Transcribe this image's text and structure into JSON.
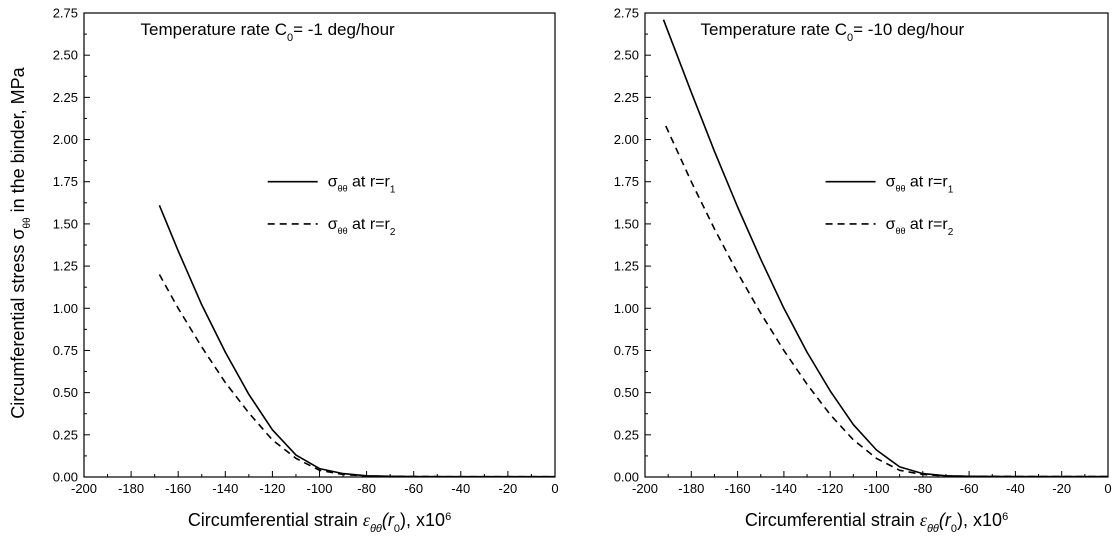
{
  "ylabel_shared": "Circumferential stress σθθ in the binder, MPa",
  "ylabel_parts": {
    "prefix": "Circumferential stress ",
    "symbol": "σ",
    "sub": "θθ",
    "suffix": " in the binder, MPa"
  },
  "chart_data": [
    {
      "type": "line",
      "title": "Temperature rate C0= -1 deg/hour",
      "title_parts": {
        "prefix": "Temperature rate C",
        "sub": "0",
        "suffix": "= -1 deg/hour"
      },
      "xlabel": "Circumferential strain εθθ(r0), x10^6",
      "xlabel_parts": {
        "prefix": "Circumferential strain ",
        "eps": "ε",
        "eps_sub": "θθ",
        "arg_open": "(r",
        "arg_sub": "0",
        "arg_close": "), x10",
        "exp": "6"
      },
      "xlim": [
        -200,
        0
      ],
      "ylim": [
        0,
        2.75
      ],
      "xticks": [
        -200,
        -180,
        -160,
        -140,
        -120,
        -100,
        -80,
        -60,
        -40,
        -20,
        0
      ],
      "yticks": [
        0,
        0.25,
        0.5,
        0.75,
        1.0,
        1.25,
        1.5,
        1.75,
        2.0,
        2.25,
        2.5,
        2.75
      ],
      "ytick_labels": [
        "0.00",
        "0.25",
        "0.50",
        "0.75",
        "1.00",
        "1.25",
        "1.50",
        "1.75",
        "2.00",
        "2.25",
        "2.50",
        "2.75"
      ],
      "grid": false,
      "legend": "center-right",
      "series": [
        {
          "name": "σθθ at r=r1",
          "name_parts": {
            "symbol": "σ",
            "sub": "θθ",
            "text": "  at r=r",
            "r_sub": "1"
          },
          "style": "solid",
          "x": [
            -168,
            -160,
            -150,
            -140,
            -130,
            -120,
            -110,
            -100,
            -90,
            -80,
            -70,
            -60,
            -40,
            -20,
            0
          ],
          "y": [
            1.61,
            1.34,
            1.02,
            0.74,
            0.49,
            0.28,
            0.13,
            0.05,
            0.02,
            0.007,
            0.004,
            0.003,
            0.002,
            0.002,
            0.002
          ]
        },
        {
          "name": "σθθ at r=r2",
          "name_parts": {
            "symbol": "σ",
            "sub": "θθ",
            "text": "  at r=r",
            "r_sub": "2"
          },
          "style": "dashed",
          "x": [
            -168,
            -160,
            -150,
            -140,
            -130,
            -120,
            -110,
            -100,
            -90,
            -80,
            -70,
            -60,
            -40,
            -20,
            0
          ],
          "y": [
            1.2,
            1.0,
            0.77,
            0.56,
            0.38,
            0.22,
            0.11,
            0.04,
            0.015,
            0.006,
            0.004,
            0.003,
            0.002,
            0.002,
            0.002
          ]
        }
      ]
    },
    {
      "type": "line",
      "title": "Temperature rate C0= -10 deg/hour",
      "title_parts": {
        "prefix": "Temperature rate C",
        "sub": "0",
        "suffix": "= -10 deg/hour"
      },
      "xlabel": "Circumferential strain εθθ(r0), x10^6",
      "xlabel_parts": {
        "prefix": "Circumferential strain ",
        "eps": "ε",
        "eps_sub": "θθ",
        "arg_open": "(r",
        "arg_sub": "0",
        "arg_close": "), x10",
        "exp": "6"
      },
      "xlim": [
        -200,
        0
      ],
      "ylim": [
        0,
        2.75
      ],
      "xticks": [
        -200,
        -180,
        -160,
        -140,
        -120,
        -100,
        -80,
        -60,
        -40,
        -20,
        0
      ],
      "yticks": [
        0,
        0.25,
        0.5,
        0.75,
        1.0,
        1.25,
        1.5,
        1.75,
        2.0,
        2.25,
        2.5,
        2.75
      ],
      "ytick_labels": [
        "0.00",
        "0.25",
        "0.50",
        "0.75",
        "1.00",
        "1.25",
        "1.50",
        "1.75",
        "2.00",
        "2.25",
        "2.50",
        "2.75"
      ],
      "grid": false,
      "legend": "center-right",
      "series": [
        {
          "name": "σθθ at r=r1",
          "name_parts": {
            "symbol": "σ",
            "sub": "θθ",
            "text": "  at r=r",
            "r_sub": "1"
          },
          "style": "solid",
          "x": [
            -192,
            -180,
            -170,
            -160,
            -150,
            -140,
            -130,
            -120,
            -110,
            -100,
            -90,
            -80,
            -70,
            -60,
            -40,
            -20,
            0
          ],
          "y": [
            2.71,
            2.28,
            1.93,
            1.6,
            1.29,
            1.0,
            0.74,
            0.51,
            0.31,
            0.16,
            0.06,
            0.02,
            0.007,
            0.004,
            0.003,
            0.003,
            0.003
          ]
        },
        {
          "name": "σθθ at r=r2",
          "name_parts": {
            "symbol": "σ",
            "sub": "θθ",
            "text": "  at r=r",
            "r_sub": "2"
          },
          "style": "dashed",
          "x": [
            -191,
            -180,
            -170,
            -160,
            -150,
            -140,
            -130,
            -120,
            -110,
            -100,
            -90,
            -80,
            -70,
            -60,
            -40,
            -20,
            0
          ],
          "y": [
            2.08,
            1.75,
            1.47,
            1.21,
            0.97,
            0.75,
            0.55,
            0.37,
            0.22,
            0.11,
            0.04,
            0.015,
            0.006,
            0.004,
            0.003,
            0.003,
            0.003
          ]
        }
      ]
    }
  ]
}
